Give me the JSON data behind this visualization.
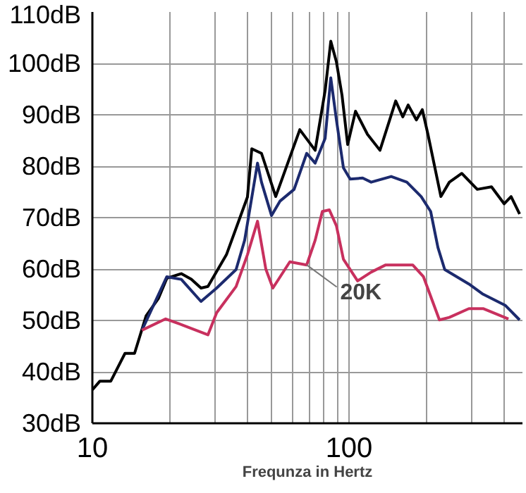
{
  "chart_data": {
    "type": "line",
    "xlabel": "Frequnza in Hertz",
    "log": "x",
    "grid": true,
    "line_style": "solid",
    "xlim": [
      10,
      474
    ],
    "ylim": [
      30,
      110
    ],
    "xticks": [
      10,
      {
        "value": 20,
        "label": null
      },
      {
        "value": 30,
        "label": null
      },
      {
        "value": 40,
        "label": null
      },
      {
        "value": 50,
        "label": null
      },
      {
        "value": 60,
        "label": null
      },
      {
        "value": 70,
        "label": null
      },
      {
        "value": 80,
        "label": null
      },
      {
        "value": 90,
        "label": null
      },
      100,
      {
        "value": 200,
        "label": null
      },
      {
        "value": 300,
        "label": null
      },
      {
        "value": 400,
        "label": null
      }
    ],
    "yticks": [
      {
        "value": 30,
        "label": "30dB"
      },
      {
        "value": 40,
        "label": "40dB"
      },
      {
        "value": 50,
        "label": "50dB"
      },
      {
        "value": 60,
        "label": "60dB"
      },
      {
        "value": 70,
        "label": "70dB"
      },
      {
        "value": 80,
        "label": "80dB"
      },
      {
        "value": 90,
        "label": "90dB"
      },
      {
        "value": 100,
        "label": "100dB"
      },
      {
        "value": 110,
        "label": "110dB"
      }
    ],
    "annotations": [
      {
        "text": "20K",
        "x": 68.4,
        "y": 60.8
      }
    ],
    "series": [
      {
        "color": "#000000",
        "x": [
          10,
          10.7,
          11.8,
          13.4,
          14.6,
          16.2,
          18.1,
          19.5,
          22.2,
          24.3,
          26.5,
          28.2,
          33.3,
          40.2,
          41.8,
          45.6,
          51.8,
          64.3,
          73.8,
          80.7,
          84.9,
          89.3,
          93.9,
          98.8,
          106,
          118,
          132,
          152,
          162,
          170,
          183,
          193,
          203,
          228,
          246,
          275,
          316,
          359,
          402,
          428,
          462
        ],
        "values": [
          36.5,
          38.2,
          38.2,
          43.6,
          43.6,
          50.9,
          54.3,
          58.2,
          59.1,
          58.0,
          56.3,
          56.6,
          62.8,
          74.0,
          83.4,
          82.5,
          74.1,
          87.1,
          83.1,
          94.7,
          104.3,
          100.3,
          93.8,
          84.2,
          90.7,
          86.2,
          83.1,
          92.7,
          89.6,
          91.9,
          89.0,
          91.0,
          86.2,
          74.1,
          76.9,
          78.6,
          75.5,
          76.0,
          72.7,
          74.1,
          70.7
        ]
      },
      {
        "color": "#1c2a6e",
        "x": [
          15.6,
          19.5,
          22.2,
          26.5,
          30.5,
          36.3,
          39.2,
          44.0,
          45.6,
          49.9,
          53.8,
          61.1,
          68.4,
          73.8,
          80.7,
          84.9,
          89.3,
          95.1,
          101,
          113,
          122,
          146,
          168,
          191,
          208,
          222,
          236,
          293,
          333,
          407,
          462
        ],
        "values": [
          48.1,
          58.5,
          58.0,
          53.7,
          56.3,
          59.9,
          65.6,
          80.6,
          76.9,
          70.4,
          73.2,
          75.5,
          82.5,
          80.6,
          85.4,
          97.2,
          89.0,
          79.7,
          77.5,
          77.7,
          76.9,
          78.0,
          76.9,
          74.1,
          71.2,
          64.2,
          59.9,
          57.1,
          55.1,
          52.9,
          50.1
        ]
      },
      {
        "color": "#c8305e",
        "x": [
          15.6,
          19.3,
          22.2,
          28.2,
          30.5,
          36.3,
          40.2,
          44.0,
          47.4,
          50.5,
          58.8,
          68.4,
          73.8,
          78.7,
          83.8,
          89.3,
          95.1,
          108,
          122,
          139,
          177,
          195,
          225,
          246,
          293,
          333,
          418
        ],
        "values": [
          48.1,
          50.3,
          49.2,
          47.2,
          51.5,
          56.6,
          62.8,
          69.3,
          60.0,
          56.3,
          61.4,
          60.8,
          65.6,
          71.2,
          71.5,
          68.4,
          61.9,
          57.7,
          59.4,
          60.8,
          60.8,
          58.5,
          50.1,
          50.6,
          52.3,
          52.3,
          50.3
        ]
      }
    ]
  }
}
